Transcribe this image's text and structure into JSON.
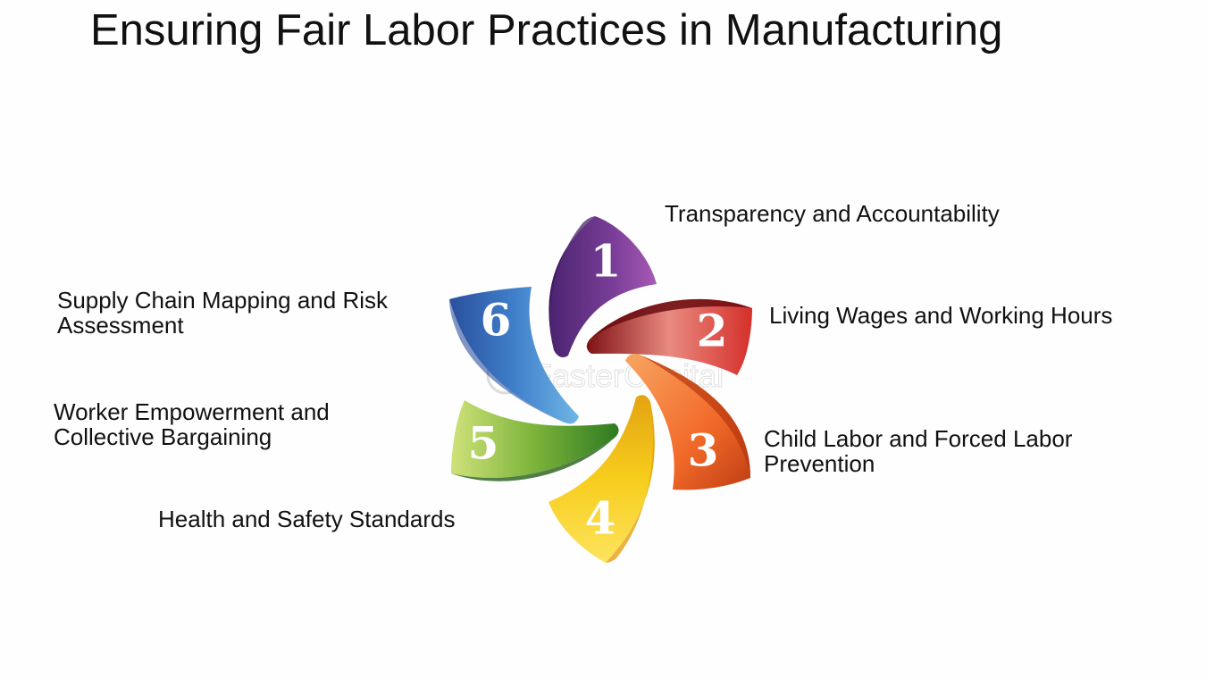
{
  "title": "Ensuring Fair Labor Practices in Manufacturing",
  "items": [
    {
      "number": "1",
      "label": "Transparency and Accountability",
      "color": "#7a3e98",
      "light": "#a75ab6",
      "dark": "#4a2370"
    },
    {
      "number": "2",
      "label": "Living Wages and Working Hours",
      "color": "#d42f2a",
      "light": "#e98a80",
      "dark": "#7f1214"
    },
    {
      "number": "3",
      "label": "Child Labor and Forced Labor\nPrevention",
      "color": "#f26a2a",
      "light": "#f9a562",
      "dark": "#bf3d12"
    },
    {
      "number": "4",
      "label": "Health and Safety Standards",
      "color": "#f7cd1c",
      "light": "#fde35e",
      "dark": "#e3a412"
    },
    {
      "number": "5",
      "label": "Worker Empowerment and\nCollective Bargaining",
      "color": "#7cb33a",
      "light": "#cfe27a",
      "dark": "#2e7a22"
    },
    {
      "number": "6",
      "label": "Supply Chain Mapping and Risk\nAssessment",
      "color": "#3f7fca",
      "light": "#6fb6e6",
      "dark": "#2a4f9c"
    }
  ],
  "watermark": "FasterCapital"
}
